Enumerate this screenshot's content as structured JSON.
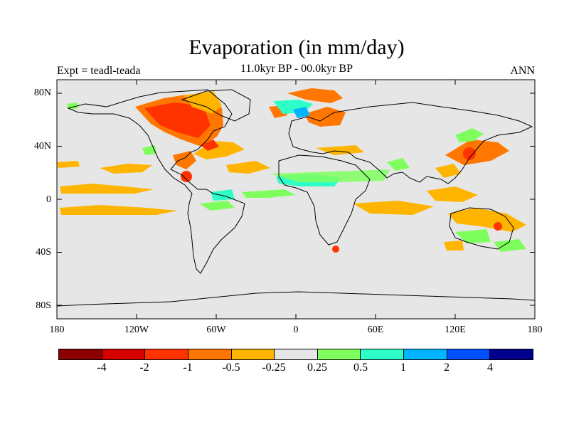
{
  "title": "Evaporation (in mm/day)",
  "subtitle": "11.0kyr BP - 00.0kyr BP",
  "left_label": "Expt = teadl-teada",
  "right_label": "ANN",
  "map": {
    "projection": "equirectangular",
    "lon_range": [
      -180,
      180
    ],
    "lat_range": [
      -90,
      90
    ],
    "background_color": "#e6e6e6",
    "y_ticks": [
      "80N",
      "40N",
      "0",
      "40S",
      "80S"
    ],
    "x_ticks": [
      "180",
      "120W",
      "60W",
      "0",
      "60E",
      "120E",
      "180"
    ]
  },
  "colorbar": {
    "colors": [
      "#8b0000",
      "#d40000",
      "#ff3300",
      "#ff7700",
      "#ffb400",
      "#e6e6e6",
      "#7fff5e",
      "#2effc8",
      "#00b4ff",
      "#0050ff",
      "#00008b"
    ],
    "labels": [
      "-4",
      "-2",
      "-1",
      "-0.5",
      "-0.25",
      "0.25",
      "0.5",
      "1",
      "2",
      "4"
    ]
  }
}
